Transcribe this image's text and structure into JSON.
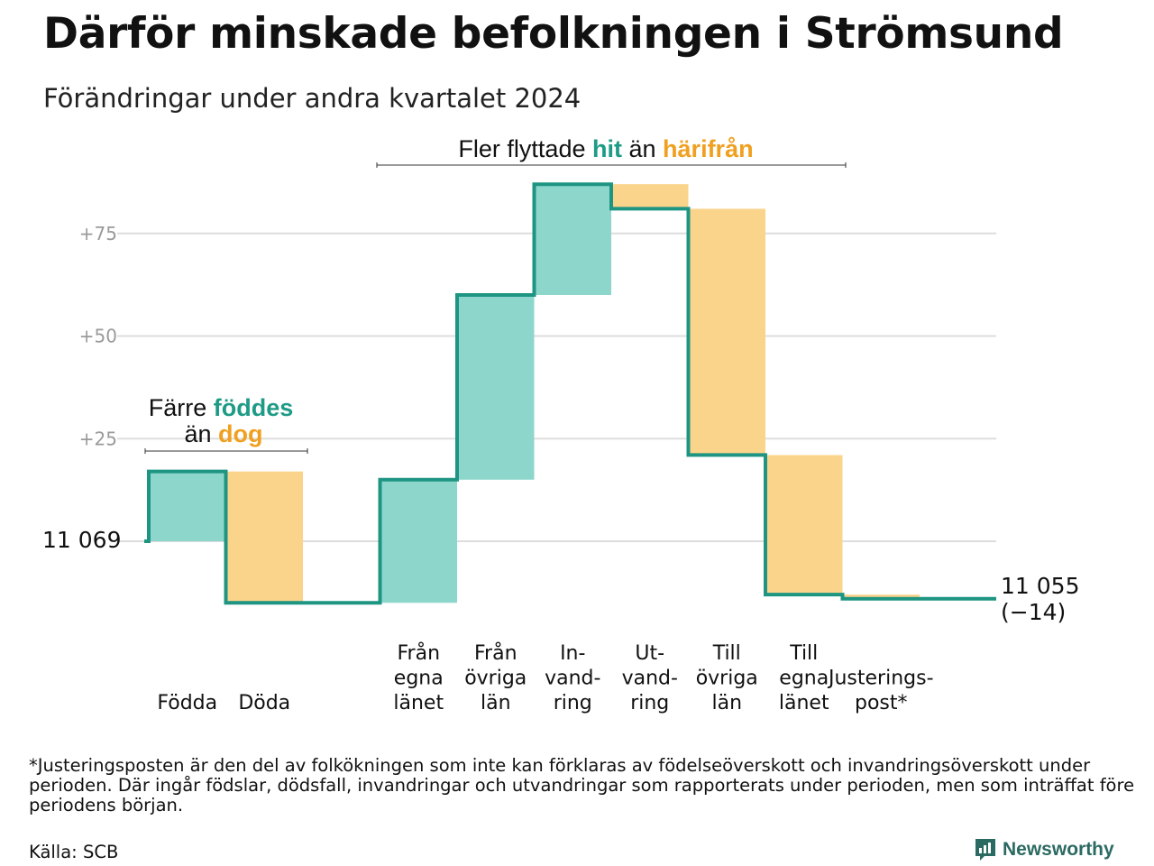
{
  "title": "Därför minskade befolkningen i Strömsund",
  "subtitle": "Förändringar under andra kvartalet 2024",
  "colors": {
    "increase": "#8dd6cc",
    "decrease": "#fbd48c",
    "line": "#1e9582",
    "grid": "#dddddd"
  },
  "annotations": {
    "births": {
      "line1_pre": "Färre ",
      "line1_hl": "föddes",
      "line2_pre": "än ",
      "line2_hl": "dog"
    },
    "moves": {
      "pre": "Fler flyttade ",
      "hl1": "hit",
      "mid": "än ",
      "hl2": "härifrån"
    }
  },
  "chart_data": {
    "type": "waterfall",
    "title": "Därför minskade befolkningen i Strömsund",
    "subtitle": "Förändringar under andra kvartalet 2024",
    "start_value": 11069,
    "start_label": "11  069",
    "end_value": 11055,
    "end_label": "11 055",
    "end_change_label": "(−14)",
    "yticks": [
      {
        "value": 25,
        "label": "+25"
      },
      {
        "value": 50,
        "label": "+50"
      },
      {
        "value": 75,
        "label": "+75"
      }
    ],
    "ylim": [
      -20,
      89
    ],
    "grid": true,
    "steps": [
      {
        "label": [
          "Födda"
        ],
        "delta": 17
      },
      {
        "label": [
          "Döda"
        ],
        "delta": -32
      },
      {
        "label": [],
        "delta": 0
      },
      {
        "label": [
          "Från",
          "egna",
          "länet"
        ],
        "delta": 30
      },
      {
        "label": [
          "Från",
          "övriga",
          "län"
        ],
        "delta": 45
      },
      {
        "label": [
          "In-",
          "vand-",
          "ring"
        ],
        "delta": 27
      },
      {
        "label": [
          "Ut-",
          "vand-",
          "ring"
        ],
        "delta": -6
      },
      {
        "label": [
          "Till",
          "övriga",
          "län"
        ],
        "delta": -60
      },
      {
        "label": [
          "Till",
          "egna",
          "länet"
        ],
        "delta": -34
      },
      {
        "label": [
          "Justerings-",
          "post*"
        ],
        "delta": -1
      }
    ]
  },
  "footnote": "*Justeringsposten är den del av folkökningen som inte kan förklaras av födelseöverskott och invandringsöverskott under perioden. Där ingår födslar, dödsfall, invandringar och utvandringar som rapporterats under perioden, men som inträffat före periodens början.",
  "source": "Källa: SCB",
  "brand": {
    "name": "Newsworthy",
    "icon": "newsworthy-logo-icon"
  }
}
